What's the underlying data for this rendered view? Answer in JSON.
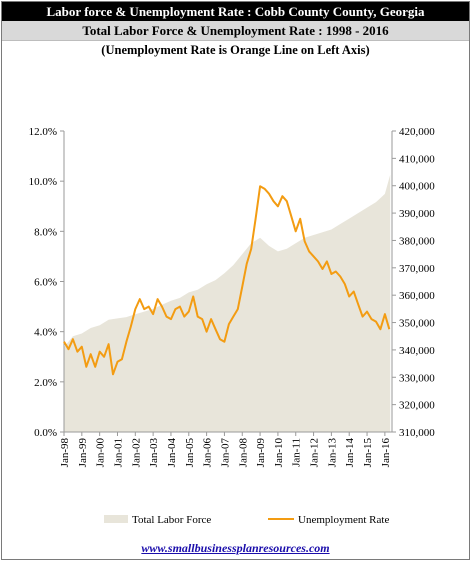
{
  "header": {
    "title": "Labor force & Unemployment Rate : Cobb County County, Georgia",
    "subtitle": "Total Labor Force & Unemployment Rate : 1998 - 2016",
    "note": "(Unemployment Rate is Orange Line on Left Axis)"
  },
  "footer": {
    "link": "www.smallbusinessplanresources.com"
  },
  "colors": {
    "labor_force_area": "#e8e5da",
    "unemployment_line": "#f39c12",
    "title_bg": "#000000",
    "subtitle_bg": "#d9d9d9"
  },
  "chart_data": {
    "type": "line",
    "title": "Total Labor Force & Unemployment Rate : 1998 - 2016",
    "y_left": {
      "ylim": [
        0,
        12
      ],
      "ticks": [
        "0.0%",
        "2.0%",
        "4.0%",
        "6.0%",
        "8.0%",
        "10.0%",
        "12.0%"
      ]
    },
    "y_right": {
      "ylim": [
        310000,
        420000
      ],
      "ticks": [
        "310,000",
        "320,000",
        "330,000",
        "340,000",
        "350,000",
        "360,000",
        "370,000",
        "380,000",
        "390,000",
        "400,000",
        "410,000",
        "420,000"
      ]
    },
    "x_ticks": [
      "Jan-98",
      "Jan-99",
      "Jan-00",
      "Jan-01",
      "Jan-02",
      "Jan-03",
      "Jan-04",
      "Jan-05",
      "Jan-06",
      "Jan-07",
      "Jan-08",
      "Jan-09",
      "Jan-10",
      "Jan-11",
      "Jan-12",
      "Jan-13",
      "Jan-14",
      "Jan-15",
      "Jan-16"
    ],
    "grid": false,
    "legend_position": "bottom",
    "series": [
      {
        "name": "Total Labor Force",
        "type": "area",
        "axis": "right",
        "x": [
          1998.0,
          1998.5,
          1999.0,
          1999.5,
          2000.0,
          2000.5,
          2001.0,
          2001.5,
          2002.0,
          2002.5,
          2003.0,
          2003.5,
          2004.0,
          2004.5,
          2005.0,
          2005.5,
          2006.0,
          2006.5,
          2007.0,
          2007.5,
          2008.0,
          2008.5,
          2009.0,
          2009.5,
          2010.0,
          2010.5,
          2011.0,
          2011.5,
          2012.0,
          2012.5,
          2013.0,
          2013.5,
          2014.0,
          2014.5,
          2015.0,
          2015.5,
          2016.0,
          2016.3
        ],
        "values": [
          341000,
          345000,
          346000,
          348000,
          349000,
          351000,
          351500,
          352000,
          353000,
          354000,
          355000,
          356500,
          358000,
          359000,
          361000,
          362000,
          364000,
          365500,
          368000,
          371000,
          375000,
          379000,
          381000,
          378000,
          376000,
          377000,
          379000,
          381000,
          382000,
          383000,
          384000,
          386000,
          388000,
          390000,
          392000,
          394000,
          397000,
          404000
        ]
      },
      {
        "name": "Unemployment Rate",
        "type": "line",
        "axis": "left",
        "x": [
          1998.0,
          1998.25,
          1998.5,
          1998.75,
          1999.0,
          1999.25,
          1999.5,
          1999.75,
          2000.0,
          2000.25,
          2000.5,
          2000.75,
          2001.0,
          2001.25,
          2001.5,
          2001.75,
          2002.0,
          2002.25,
          2002.5,
          2002.75,
          2003.0,
          2003.25,
          2003.5,
          2003.75,
          2004.0,
          2004.25,
          2004.5,
          2004.75,
          2005.0,
          2005.25,
          2005.5,
          2005.75,
          2006.0,
          2006.25,
          2006.5,
          2006.75,
          2007.0,
          2007.25,
          2007.5,
          2007.75,
          2008.0,
          2008.25,
          2008.5,
          2008.75,
          2009.0,
          2009.25,
          2009.5,
          2009.75,
          2010.0,
          2010.25,
          2010.5,
          2010.75,
          2011.0,
          2011.25,
          2011.5,
          2011.75,
          2012.0,
          2012.25,
          2012.5,
          2012.75,
          2013.0,
          2013.25,
          2013.5,
          2013.75,
          2014.0,
          2014.25,
          2014.5,
          2014.75,
          2015.0,
          2015.25,
          2015.5,
          2015.75,
          2016.0,
          2016.25
        ],
        "values": [
          3.6,
          3.3,
          3.7,
          3.2,
          3.4,
          2.6,
          3.1,
          2.6,
          3.2,
          3.0,
          3.5,
          2.3,
          2.8,
          2.9,
          3.6,
          4.2,
          4.9,
          5.3,
          4.9,
          5.0,
          4.7,
          5.3,
          5.0,
          4.6,
          4.5,
          4.9,
          5.0,
          4.6,
          4.8,
          5.4,
          4.6,
          4.5,
          4.0,
          4.5,
          4.1,
          3.7,
          3.6,
          4.3,
          4.6,
          4.9,
          5.8,
          6.7,
          7.3,
          8.5,
          9.8,
          9.7,
          9.5,
          9.2,
          9.0,
          9.4,
          9.2,
          8.6,
          8.0,
          8.5,
          7.6,
          7.2,
          7.0,
          6.8,
          6.5,
          6.8,
          6.3,
          6.4,
          6.2,
          5.9,
          5.4,
          5.6,
          5.1,
          4.6,
          4.8,
          4.5,
          4.4,
          4.1,
          4.7,
          4.1
        ]
      }
    ]
  }
}
